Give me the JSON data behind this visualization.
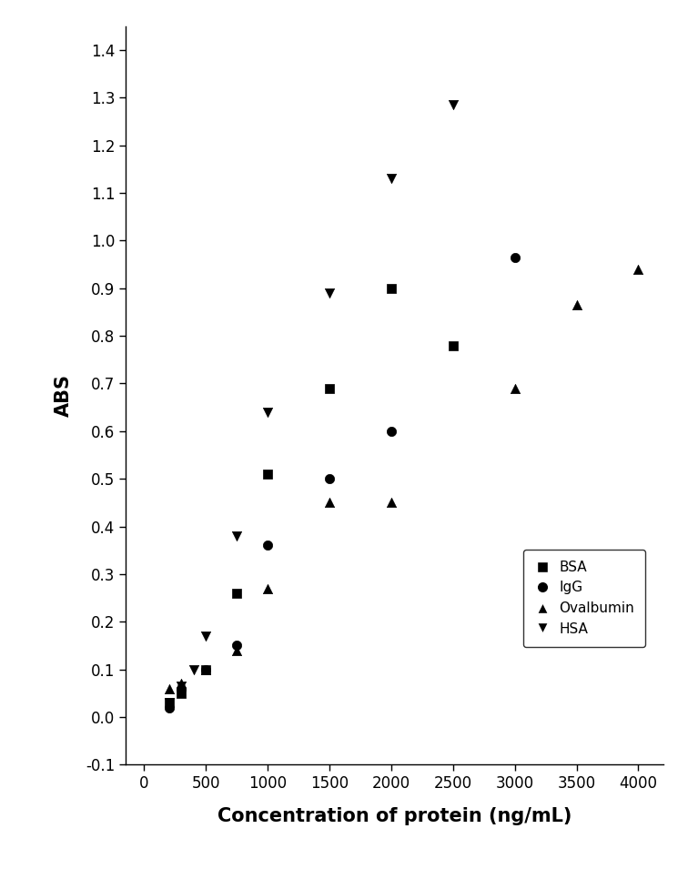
{
  "title": "",
  "xlabel": "Concentration of protein (ng/mL)",
  "ylabel": "ABS",
  "xlim": [
    -150,
    4200
  ],
  "ylim": [
    -0.1,
    1.45
  ],
  "xticks": [
    0,
    500,
    1000,
    1500,
    2000,
    2500,
    3000,
    3500,
    4000
  ],
  "yticks": [
    -0.1,
    0.0,
    0.1,
    0.2,
    0.3,
    0.4,
    0.5,
    0.6,
    0.7,
    0.8,
    0.9,
    1.0,
    1.1,
    1.2,
    1.3,
    1.4
  ],
  "BSA": {
    "x": [
      200,
      300,
      500,
      750,
      1000,
      1500,
      2000,
      2500
    ],
    "y": [
      0.03,
      0.05,
      0.1,
      0.26,
      0.51,
      0.69,
      0.9,
      0.78
    ],
    "marker": "s",
    "label": "BSA",
    "color": "black"
  },
  "IgG": {
    "x": [
      200,
      300,
      500,
      750,
      1000,
      1500,
      2000,
      3000
    ],
    "y": [
      0.02,
      0.06,
      0.1,
      0.15,
      0.36,
      0.5,
      0.6,
      0.965
    ],
    "marker": "o",
    "label": "IgG",
    "color": "black"
  },
  "Ovalbumin": {
    "x": [
      200,
      300,
      500,
      750,
      1000,
      1500,
      2000,
      3000,
      3500,
      4000
    ],
    "y": [
      0.06,
      0.07,
      0.1,
      0.14,
      0.27,
      0.45,
      0.45,
      0.69,
      0.865,
      0.94
    ],
    "marker": "^",
    "label": "Ovalbumin",
    "color": "black"
  },
  "HSA": {
    "x": [
      200,
      300,
      400,
      500,
      750,
      1000,
      1500,
      2000,
      2500
    ],
    "y": [
      0.03,
      0.065,
      0.1,
      0.17,
      0.38,
      0.64,
      0.89,
      1.13,
      1.285
    ],
    "marker": "v",
    "label": "HSA",
    "color": "black"
  },
  "background_color": "#ffffff",
  "marker_size": 55,
  "tick_fontsize": 12,
  "label_fontsize": 15
}
